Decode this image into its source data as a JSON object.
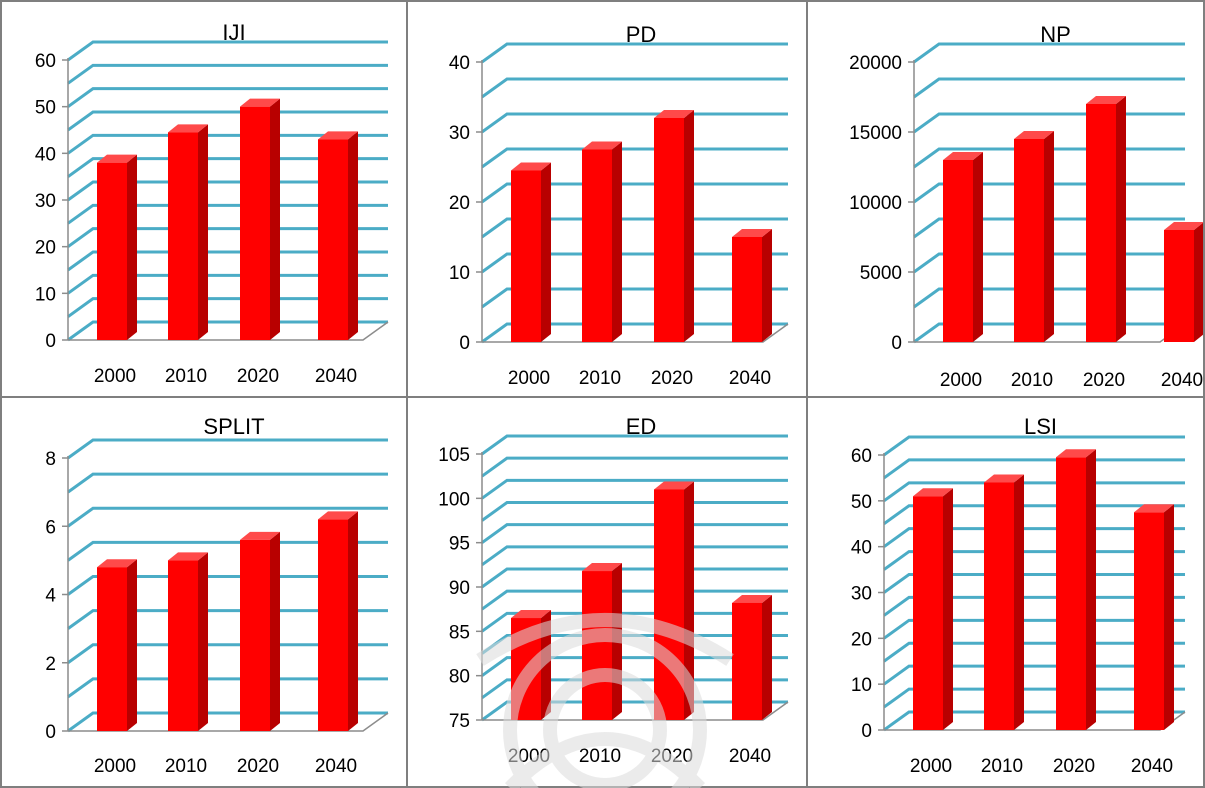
{
  "colors": {
    "bar": "#ff0000",
    "bar_side": "#b80000",
    "bar_top": "#ff4a4a",
    "grid": "#4bacc6",
    "axis": "#8c8c8c",
    "border": "#7f7f7f"
  },
  "chart_data": [
    {
      "type": "bar",
      "title": "IJI",
      "categories": [
        "2000",
        "2010",
        "2020",
        "2040"
      ],
      "values": [
        38,
        44.5,
        50,
        43
      ],
      "ylim": [
        0,
        60
      ],
      "yticks": [
        0,
        10,
        20,
        30,
        40,
        50,
        60
      ],
      "grid": true
    },
    {
      "type": "bar",
      "title": "PD",
      "categories": [
        "2000",
        "2010",
        "2020",
        "2040"
      ],
      "values": [
        24.5,
        27.5,
        32,
        15
      ],
      "ylim": [
        0,
        40
      ],
      "yticks": [
        0,
        10,
        20,
        30,
        40
      ],
      "grid": true
    },
    {
      "type": "bar",
      "title": "NP",
      "categories": [
        "2000",
        "2010",
        "2020",
        "2040"
      ],
      "values": [
        13000,
        14500,
        17000,
        8000
      ],
      "ylim": [
        0,
        20000
      ],
      "yticks": [
        0,
        5000,
        10000,
        15000,
        20000
      ],
      "grid": true
    },
    {
      "type": "bar",
      "title": "SPLIT",
      "categories": [
        "2000",
        "2010",
        "2020",
        "2040"
      ],
      "values": [
        4.8,
        5,
        5.6,
        6.2
      ],
      "ylim": [
        0,
        8
      ],
      "yticks": [
        0,
        2,
        4,
        6,
        8
      ],
      "grid": true
    },
    {
      "type": "bar",
      "title": "ED",
      "categories": [
        "2000",
        "2010",
        "2020",
        "2040"
      ],
      "values": [
        86.5,
        91.8,
        101,
        88.2
      ],
      "ylim": [
        75,
        105
      ],
      "yticks": [
        75,
        80,
        85,
        90,
        95,
        100,
        105
      ],
      "grid": true
    },
    {
      "type": "bar",
      "title": "LSI",
      "categories": [
        "2000",
        "2010",
        "2020",
        "2040"
      ],
      "values": [
        51,
        54,
        59.5,
        47.5
      ],
      "ylim": [
        0,
        60
      ],
      "yticks": [
        0,
        10,
        20,
        30,
        40,
        50,
        60
      ],
      "grid": true
    }
  ]
}
